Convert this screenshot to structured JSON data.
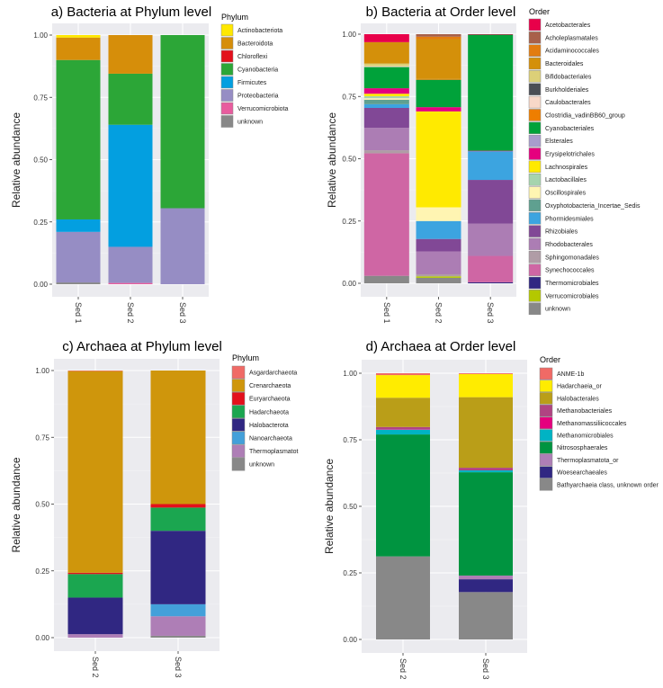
{
  "chart_data": [
    {
      "id": "a",
      "type": "bar",
      "stacked": true,
      "title": "a) Bacteria at Phylum level",
      "ylabel": "Relative abundance",
      "xlabel": "",
      "ylim": [
        0,
        1
      ],
      "yticks": [
        "0.00",
        "0.25",
        "0.50",
        "0.75",
        "1.00"
      ],
      "grid": true,
      "legend_title": "Phylum",
      "legend_position": "right",
      "categories": [
        "Sed 1",
        "Sed 2",
        "Sed 3"
      ],
      "series": [
        {
          "name": "Actinobacteriota",
          "color": "#FFE800",
          "values": [
            0.01,
            0.0,
            0.0
          ]
        },
        {
          "name": "Bacteroidota",
          "color": "#D68E0A",
          "values": [
            0.09,
            0.155,
            0.0
          ]
        },
        {
          "name": "Chloroflexi",
          "color": "#E3101C",
          "values": [
            0.0,
            0.0,
            0.0
          ]
        },
        {
          "name": "Cyanobacteria",
          "color": "#2CA637",
          "values": [
            0.64,
            0.205,
            0.695
          ]
        },
        {
          "name": "Firmicutes",
          "color": "#039FE0",
          "values": [
            0.05,
            0.49,
            0.0
          ]
        },
        {
          "name": "Proteobacteria",
          "color": "#968DC4",
          "values": [
            0.203,
            0.145,
            0.305
          ]
        },
        {
          "name": "Verrucomicrobiota",
          "color": "#E85C9E",
          "values": [
            0.0,
            0.005,
            0.0
          ]
        },
        {
          "name": "unknown",
          "color": "#888888",
          "values": [
            0.007,
            0.0,
            0.0
          ]
        }
      ]
    },
    {
      "id": "b",
      "type": "bar",
      "stacked": true,
      "title": "b) Bacteria at Order level",
      "ylabel": "Relative abundance",
      "xlabel": "",
      "ylim": [
        0,
        1
      ],
      "yticks": [
        "0.00",
        "0.25",
        "0.50",
        "0.75",
        "1.00"
      ],
      "grid": true,
      "legend_title": "Order",
      "legend_position": "right",
      "categories": [
        "Sed 1",
        "Sed 2",
        "Sed 3"
      ],
      "series": [
        {
          "name": "Acetobacterales",
          "color": "#E8004A",
          "values": [
            0.032,
            0.0,
            0.002
          ]
        },
        {
          "name": "Acholeplasmatales",
          "color": "#A8604A",
          "values": [
            0.0,
            0.01,
            0.0
          ]
        },
        {
          "name": "Acidaminococcales",
          "color": "#E27C10",
          "values": [
            0.0,
            0.01,
            0.0
          ]
        },
        {
          "name": "Bacteroidales",
          "color": "#D4900A",
          "values": [
            0.086,
            0.16,
            0.0
          ]
        },
        {
          "name": "Bifidobacteriales",
          "color": "#DCD078",
          "values": [
            0.01,
            0.0,
            0.0
          ]
        },
        {
          "name": "Burkholderiales",
          "color": "#4A4E54",
          "values": [
            0.0,
            0.0,
            0.0
          ]
        },
        {
          "name": "Caulobacterales",
          "color": "#F8D8C8",
          "values": [
            0.004,
            0.0,
            0.0
          ]
        },
        {
          "name": "Clostridia_vadinBB60_group",
          "color": "#EE7E00",
          "values": [
            0.0,
            0.003,
            0.0
          ]
        },
        {
          "name": "Cyanobacteriales",
          "color": "#00A23A",
          "values": [
            0.085,
            0.11,
            0.466
          ]
        },
        {
          "name": "Elsterales",
          "color": "#A89CCC",
          "values": [
            0.0,
            0.0,
            0.0
          ]
        },
        {
          "name": "Erysipelotrichales",
          "color": "#E5007E",
          "values": [
            0.022,
            0.017,
            0.002
          ]
        },
        {
          "name": "Lachnospirales",
          "color": "#FFEA00",
          "values": [
            0.01,
            0.385,
            0.0
          ]
        },
        {
          "name": "Lactobacillales",
          "color": "#A6D4AE",
          "values": [
            0.008,
            0.0,
            0.0
          ]
        },
        {
          "name": "Oscillospirales",
          "color": "#FFF5B2",
          "values": [
            0.006,
            0.055,
            0.0
          ]
        },
        {
          "name": "Oxyphotobacteria_Incertae_Sedis",
          "color": "#5FA090",
          "values": [
            0.018,
            0.0,
            0.0
          ]
        },
        {
          "name": "Phormidesmiales",
          "color": "#3CA4E0",
          "values": [
            0.015,
            0.072,
            0.115
          ]
        },
        {
          "name": "Rhizobiales",
          "color": "#814896",
          "values": [
            0.08,
            0.05,
            0.175
          ]
        },
        {
          "name": "Rhodobacterales",
          "color": "#AC7DB4",
          "values": [
            0.09,
            0.092,
            0.13
          ]
        },
        {
          "name": "Sphingomonadales",
          "color": "#B09CA6",
          "values": [
            0.012,
            0.008,
            0.0
          ]
        },
        {
          "name": "Synechococcales",
          "color": "#CF66A4",
          "values": [
            0.492,
            0.0,
            0.106
          ]
        },
        {
          "name": "Thermomicrobiales",
          "color": "#302782",
          "values": [
            0.0,
            0.0,
            0.004
          ]
        },
        {
          "name": "Verrucomicrobiales",
          "color": "#B4C800",
          "values": [
            0.0,
            0.006,
            0.0
          ]
        },
        {
          "name": "unknown",
          "color": "#888888",
          "values": [
            0.03,
            0.022,
            0.0
          ]
        }
      ]
    },
    {
      "id": "c",
      "type": "bar",
      "stacked": true,
      "title": "c) Archaea at Phylum level",
      "ylabel": "Relative abundance",
      "xlabel": "",
      "ylim": [
        0,
        1
      ],
      "yticks": [
        "0.00",
        "0.25",
        "0.50",
        "0.75",
        "1.00"
      ],
      "grid": true,
      "legend_title": "Phylum",
      "legend_position": "right",
      "categories": [
        "Sed 2",
        "Sed 3"
      ],
      "series": [
        {
          "name": "Asgardarchaeota",
          "color": "#F06A66",
          "values": [
            0.002,
            0.0
          ]
        },
        {
          "name": "Crenarchaeota",
          "color": "#CF960C",
          "values": [
            0.755,
            0.5
          ]
        },
        {
          "name": "Euryarchaeota",
          "color": "#E3101C",
          "values": [
            0.005,
            0.013
          ]
        },
        {
          "name": "Hadarchaeota",
          "color": "#1BA650",
          "values": [
            0.088,
            0.087
          ]
        },
        {
          "name": "Halobacterota",
          "color": "#302782",
          "values": [
            0.137,
            0.275
          ]
        },
        {
          "name": "Nanoarchaeota",
          "color": "#43A0DA",
          "values": [
            0.0,
            0.045
          ]
        },
        {
          "name": "Thermoplasmatot",
          "color": "#AE7EB6",
          "values": [
            0.013,
            0.073
          ]
        },
        {
          "name": "unknown",
          "color": "#888888",
          "values": [
            0.0,
            0.007
          ]
        }
      ]
    },
    {
      "id": "d",
      "type": "bar",
      "stacked": true,
      "title": "d) Archaea at Order level",
      "ylabel": "Relative abundance",
      "xlabel": "",
      "ylim": [
        0,
        1
      ],
      "yticks": [
        "0.00",
        "0.25",
        "0.50",
        "0.75",
        "1.00"
      ],
      "grid": true,
      "legend_title": "Order",
      "legend_position": "right",
      "categories": [
        "Sed 2",
        "Sed 3"
      ],
      "series": [
        {
          "name": "ANME-1b",
          "color": "#F06A66",
          "values": [
            0.007,
            0.003
          ]
        },
        {
          "name": "Hadarchaeia_or",
          "color": "#FFEC00",
          "values": [
            0.085,
            0.087
          ]
        },
        {
          "name": "Halobacterales",
          "color": "#BA9E18",
          "values": [
            0.11,
            0.265
          ]
        },
        {
          "name": "Methanobacteriales",
          "color": "#B04482",
          "values": [
            0.008,
            0.01
          ]
        },
        {
          "name": "Methanomassiliicoccales",
          "color": "#E5007E",
          "values": [
            0.002,
            0.0
          ]
        },
        {
          "name": "Methanomicrobiales",
          "color": "#00B3C4",
          "values": [
            0.018,
            0.007
          ]
        },
        {
          "name": "Nitrososphaerales",
          "color": "#009440",
          "values": [
            0.458,
            0.388
          ]
        },
        {
          "name": "Thermoplasmatota_or",
          "color": "#AE7EB6",
          "values": [
            0.0,
            0.014
          ]
        },
        {
          "name": "Woesearchaeales",
          "color": "#302782",
          "values": [
            0.0,
            0.048
          ]
        },
        {
          "name": "Bathyarchaeia class, unknown order",
          "color": "#888888",
          "values": [
            0.312,
            0.178
          ]
        }
      ]
    }
  ]
}
